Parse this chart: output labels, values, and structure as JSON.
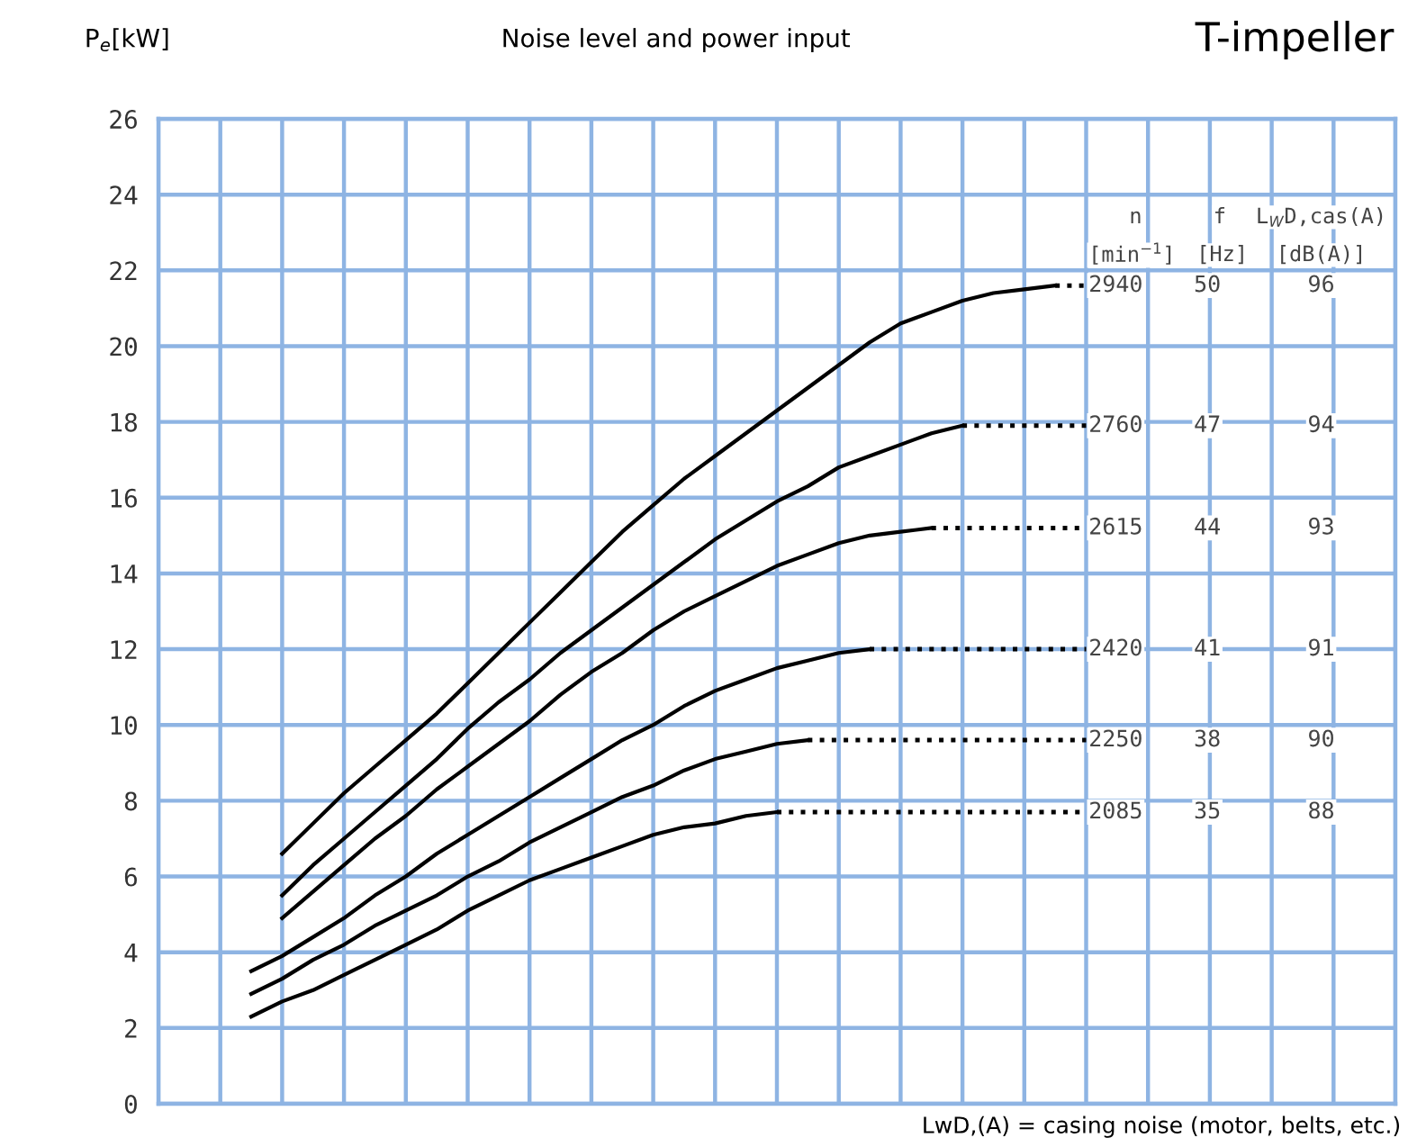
{
  "chart_data": {
    "type": "line",
    "title": "Noise level and power input",
    "subtitle": "T-impeller",
    "ylabel": "P$_{e}$[kW]",
    "categories": [
      null,
      null,
      null,
      null,
      null,
      null,
      null,
      null,
      null,
      null,
      null,
      null,
      null,
      null,
      null,
      null,
      null,
      null,
      null,
      null,
      null,
      null,
      null,
      null,
      null,
      null,
      null,
      null,
      null,
      null,
      null,
      null,
      null,
      null,
      null,
      null,
      null,
      null,
      null,
      null,
      null
    ],
    "ylim": [
      0,
      26
    ],
    "yticks": [
      0,
      2,
      4,
      6,
      8,
      10,
      12,
      14,
      16,
      18,
      20,
      22,
      24,
      26
    ],
    "tick_labels": "y",
    "grid": true,
    "marker": "none",
    "series": [
      {
        "color": "#000000",
        "line_style": "solid",
        "values": [
          null,
          null,
          null,
          null,
          6.6,
          7.4,
          8.2,
          8.9,
          9.6,
          10.3,
          11.1,
          11.9,
          12.7,
          13.5,
          14.3,
          15.1,
          15.8,
          16.5,
          17.1,
          17.7,
          18.3,
          18.9,
          19.5,
          20.1,
          20.6,
          20.9,
          21.2,
          21.4,
          21.5,
          21.6,
          null,
          null,
          null,
          null,
          null,
          null,
          null,
          null,
          null,
          null,
          null
        ]
      },
      {
        "color": "#000000",
        "line_style": "solid",
        "values": [
          null,
          null,
          null,
          null,
          5.5,
          6.3,
          7.0,
          7.7,
          8.4,
          9.1,
          9.9,
          10.6,
          11.2,
          11.9,
          12.5,
          13.1,
          13.7,
          14.3,
          14.9,
          15.4,
          15.9,
          16.3,
          16.8,
          17.1,
          17.4,
          17.7,
          17.9,
          null,
          null,
          null,
          null,
          null,
          null,
          null,
          null,
          null,
          null,
          null,
          null,
          null,
          null
        ]
      },
      {
        "color": "#000000",
        "line_style": "solid",
        "values": [
          null,
          null,
          null,
          null,
          4.9,
          5.6,
          6.3,
          7.0,
          7.6,
          8.3,
          8.9,
          9.5,
          10.1,
          10.8,
          11.4,
          11.9,
          12.5,
          13.0,
          13.4,
          13.8,
          14.2,
          14.5,
          14.8,
          15.0,
          15.1,
          15.2,
          null,
          null,
          null,
          null,
          null,
          null,
          null,
          null,
          null,
          null,
          null,
          null,
          null,
          null,
          null
        ]
      },
      {
        "color": "#000000",
        "line_style": "solid",
        "values": [
          null,
          null,
          null,
          3.5,
          3.9,
          4.4,
          4.9,
          5.5,
          6.0,
          6.6,
          7.1,
          7.6,
          8.1,
          8.6,
          9.1,
          9.6,
          10.0,
          10.5,
          10.9,
          11.2,
          11.5,
          11.7,
          11.9,
          12.0,
          null,
          null,
          null,
          null,
          null,
          null,
          null,
          null,
          null,
          null,
          null,
          null,
          null,
          null,
          null,
          null,
          null
        ]
      },
      {
        "color": "#000000",
        "line_style": "solid",
        "values": [
          null,
          null,
          null,
          2.9,
          3.3,
          3.8,
          4.2,
          4.7,
          5.1,
          5.5,
          6.0,
          6.4,
          6.9,
          7.3,
          7.7,
          8.1,
          8.4,
          8.8,
          9.1,
          9.3,
          9.5,
          9.6,
          null,
          null,
          null,
          null,
          null,
          null,
          null,
          null,
          null,
          null,
          null,
          null,
          null,
          null,
          null,
          null,
          null,
          null,
          null
        ]
      },
      {
        "color": "#000000",
        "line_style": "solid",
        "values": [
          null,
          null,
          null,
          2.3,
          2.7,
          3.0,
          3.4,
          3.8,
          4.2,
          4.6,
          5.1,
          5.5,
          5.9,
          6.2,
          6.5,
          6.8,
          7.1,
          7.3,
          7.4,
          7.6,
          7.7,
          null,
          null,
          null,
          null,
          null,
          null,
          null,
          null,
          null,
          null,
          null,
          null,
          null,
          null,
          null,
          null,
          null,
          null,
          null,
          null
        ]
      },
      {
        "color": "#000000",
        "line_style": "dotted",
        "values": [
          null,
          null,
          null,
          null,
          null,
          null,
          null,
          null,
          null,
          null,
          null,
          null,
          null,
          null,
          null,
          null,
          null,
          null,
          null,
          null,
          null,
          null,
          null,
          null,
          null,
          null,
          null,
          null,
          null,
          21.6,
          21.6,
          null,
          null,
          null,
          null,
          null,
          null,
          null,
          null,
          null,
          null
        ]
      },
      {
        "color": "#000000",
        "line_style": "dotted",
        "values": [
          null,
          null,
          null,
          null,
          null,
          null,
          null,
          null,
          null,
          null,
          null,
          null,
          null,
          null,
          null,
          null,
          null,
          null,
          null,
          null,
          null,
          null,
          null,
          null,
          null,
          null,
          17.9,
          17.9,
          17.9,
          17.9,
          17.9,
          null,
          null,
          null,
          null,
          null,
          null,
          null,
          null,
          null,
          null
        ]
      },
      {
        "color": "#000000",
        "line_style": "dotted",
        "values": [
          null,
          null,
          null,
          null,
          null,
          null,
          null,
          null,
          null,
          null,
          null,
          null,
          null,
          null,
          null,
          null,
          null,
          null,
          null,
          null,
          null,
          null,
          null,
          null,
          null,
          15.2,
          15.2,
          15.2,
          15.2,
          15.2,
          15.2,
          null,
          null,
          null,
          null,
          null,
          null,
          null,
          null,
          null,
          null
        ]
      },
      {
        "color": "#000000",
        "line_style": "dotted",
        "values": [
          null,
          null,
          null,
          null,
          null,
          null,
          null,
          null,
          null,
          null,
          null,
          null,
          null,
          null,
          null,
          null,
          null,
          null,
          null,
          null,
          null,
          null,
          null,
          12.0,
          12.0,
          12.0,
          12.0,
          12.0,
          12.0,
          12.0,
          12.0,
          null,
          null,
          null,
          null,
          null,
          null,
          null,
          null,
          null,
          null
        ]
      },
      {
        "color": "#000000",
        "line_style": "dotted",
        "values": [
          null,
          null,
          null,
          null,
          null,
          null,
          null,
          null,
          null,
          null,
          null,
          null,
          null,
          null,
          null,
          null,
          null,
          null,
          null,
          null,
          null,
          9.6,
          9.6,
          9.6,
          9.6,
          9.6,
          9.6,
          9.6,
          9.6,
          9.6,
          9.6,
          null,
          null,
          null,
          null,
          null,
          null,
          null,
          null,
          null,
          null
        ]
      },
      {
        "color": "#000000",
        "line_style": "dotted",
        "values": [
          null,
          null,
          null,
          null,
          null,
          null,
          null,
          null,
          null,
          null,
          null,
          null,
          null,
          null,
          null,
          null,
          null,
          null,
          null,
          null,
          7.7,
          7.7,
          7.7,
          7.7,
          7.7,
          7.7,
          7.7,
          7.7,
          7.7,
          7.7,
          7.7,
          null,
          null,
          null,
          null,
          null,
          null,
          null,
          null,
          null,
          null
        ]
      }
    ],
    "annotations": [
      "n",
      "f",
      "L$_{W}$D,cas(A)",
      "[min$^{−1}$]",
      "[Hz]",
      "[dB(A)]",
      "LwD,(A) = casing noise (motor, belts, etc.)",
      "2940",
      "50",
      "96",
      "2760",
      "47",
      "94",
      "2615",
      "44",
      "93",
      "2420",
      "41",
      "91",
      "2250",
      "38",
      "90",
      "2085",
      "35",
      "88"
    ]
  }
}
